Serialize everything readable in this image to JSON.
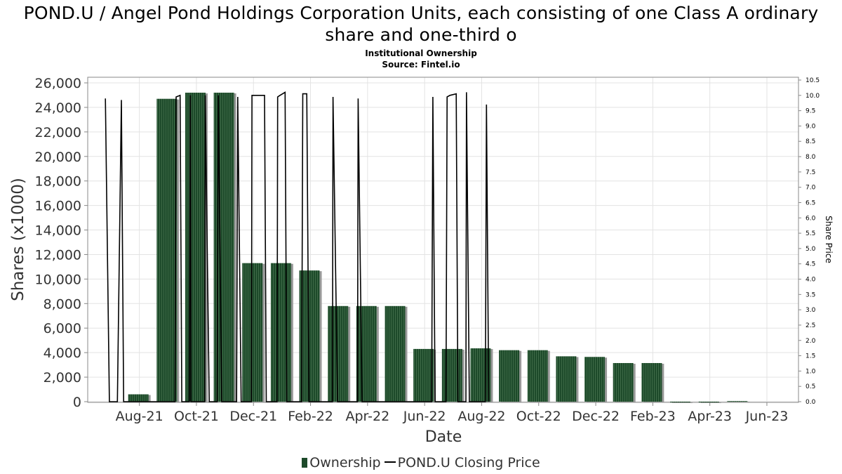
{
  "title": "POND.U / Angel Pond Holdings Corporation Units, each consisting of one Class A ordinary share and one-third o",
  "subtitle_1": "Institutional Ownership",
  "subtitle_2": "Source: Fintel.io",
  "legend": {
    "ownership": "Ownership",
    "price": "POND.U Closing Price"
  },
  "colors": {
    "bar": "#1d4a2a",
    "bar_stripe": "#3f6b48",
    "bar_shadow": "#9a9a9a",
    "price_line": "#000000",
    "grid": "#e3e3e3"
  },
  "chart_data": {
    "type": "bar",
    "xlabel": "Date",
    "ylabel": "Shares (x1000)",
    "y2label": "Share Price",
    "ylim": [
      0,
      26500
    ],
    "y2lim": [
      0,
      10.6
    ],
    "yticks": [
      "0",
      "2,000",
      "4,000",
      "6,000",
      "8,000",
      "10,000",
      "12,000",
      "14,000",
      "16,000",
      "18,000",
      "20,000",
      "22,000",
      "24,000",
      "26,000"
    ],
    "y2ticks": [
      "0.0",
      "0.5",
      "1.0",
      "1.5",
      "2.0",
      "2.5",
      "3.0",
      "3.5",
      "4.0",
      "4.5",
      "5.0",
      "5.5",
      "6.0",
      "6.5",
      "7.0",
      "7.5",
      "8.0",
      "8.5",
      "9.0",
      "9.5",
      "10.0",
      "10.5"
    ],
    "xticks": [
      "Aug-21",
      "Oct-21",
      "Dec-21",
      "Feb-22",
      "Apr-22",
      "Jun-22",
      "Aug-22",
      "Oct-22",
      "Dec-22",
      "Feb-23",
      "Apr-23",
      "Jun-23"
    ],
    "grid": true,
    "legend_position": "bottom",
    "series": [
      {
        "name": "Ownership",
        "type": "bar",
        "values": [
          600,
          24700,
          25200,
          25200,
          11300,
          11300,
          10700,
          7800,
          7800,
          7800,
          4300,
          4300,
          4350,
          4200,
          4200,
          3700,
          3650,
          3150,
          3150,
          0,
          0,
          50
        ]
      },
      {
        "name": "POND.U Closing Price",
        "type": "line",
        "points": [
          [
            0.3,
            9.9
          ],
          [
            0.44,
            0.0
          ],
          [
            0.72,
            0.0
          ],
          [
            0.86,
            9.85
          ],
          [
            0.94,
            0.0
          ],
          [
            1.3,
            0.0
          ],
          [
            2.74,
            0.0
          ],
          [
            2.78,
            9.95
          ],
          [
            2.92,
            10.0
          ],
          [
            2.98,
            0.0
          ],
          [
            3.24,
            0.0
          ],
          [
            3.28,
            10.0
          ],
          [
            3.3,
            0.0
          ],
          [
            3.78,
            0.0
          ],
          [
            3.8,
            10.0
          ],
          [
            3.94,
            0.0
          ],
          [
            4.22,
            0.0
          ],
          [
            4.26,
            10.0
          ],
          [
            4.38,
            0.0
          ],
          [
            4.9,
            0.0
          ],
          [
            4.94,
            9.95
          ],
          [
            5.06,
            0.0
          ],
          [
            5.42,
            0.0
          ],
          [
            5.44,
            10.0
          ],
          [
            5.88,
            10.0
          ],
          [
            5.94,
            0.0
          ],
          [
            6.32,
            0.0
          ],
          [
            6.34,
            9.95
          ],
          [
            6.42,
            10.0
          ],
          [
            6.6,
            10.1
          ],
          [
            6.66,
            0.0
          ],
          [
            7.18,
            0.0
          ],
          [
            7.22,
            10.05
          ],
          [
            7.36,
            10.05
          ],
          [
            7.44,
            0.0
          ],
          [
            8.26,
            0.0
          ],
          [
            8.28,
            9.95
          ],
          [
            8.44,
            0.0
          ],
          [
            9.14,
            0.0
          ],
          [
            9.16,
            9.9
          ],
          [
            9.3,
            0.0
          ],
          [
            11.74,
            0.0
          ],
          [
            11.78,
            9.95
          ],
          [
            11.86,
            0.0
          ],
          [
            12.24,
            0.0
          ],
          [
            12.28,
            9.95
          ],
          [
            12.38,
            10.0
          ],
          [
            12.6,
            10.05
          ],
          [
            12.66,
            0.0
          ],
          [
            12.94,
            0.0
          ],
          [
            12.96,
            10.1
          ],
          [
            13.06,
            0.0
          ],
          [
            13.62,
            0.0
          ],
          [
            13.66,
            9.7
          ],
          [
            13.74,
            0.0
          ]
        ]
      }
    ]
  }
}
